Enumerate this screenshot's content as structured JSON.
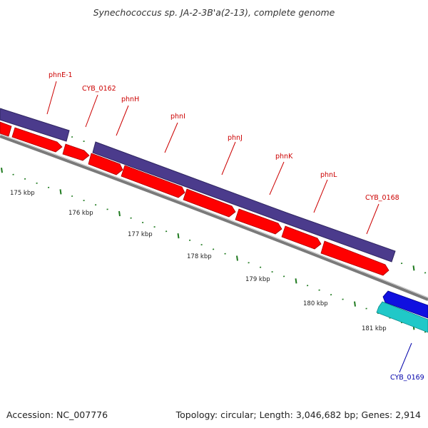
{
  "title": "Synechococcus sp. JA-2-3B'a(2-13), complete genome",
  "footer": {
    "accession": "Accession: NC_007776",
    "summary": "Topology: circular; Length: 3,046,682 bp; Genes: 2,914"
  },
  "colors": {
    "forward_gene": "#ff0000",
    "operon_block": "#4b3b8c",
    "backbone": "#808080",
    "reverse_gene_dark": "#1010e0",
    "reverse_gene_light": "#20c8c8",
    "tick": "#1f7a1f",
    "label_red": "#cc0000",
    "label_blue": "#0000aa"
  },
  "scale_labels": [
    "175 kbp",
    "176 kbp",
    "177 kbp",
    "178 kbp",
    "179 kbp",
    "180 kbp",
    "181 kbp"
  ],
  "gene_labels": [
    {
      "name": "phnE-1",
      "strand": "forward"
    },
    {
      "name": "CYB_0162",
      "strand": "forward"
    },
    {
      "name": "phnH",
      "strand": "forward"
    },
    {
      "name": "phnI",
      "strand": "forward"
    },
    {
      "name": "phnJ",
      "strand": "forward"
    },
    {
      "name": "phnK",
      "strand": "forward"
    },
    {
      "name": "phnL",
      "strand": "forward"
    },
    {
      "name": "CYB_0168",
      "strand": "forward"
    },
    {
      "name": "CYB_0169",
      "strand": "reverse"
    }
  ]
}
